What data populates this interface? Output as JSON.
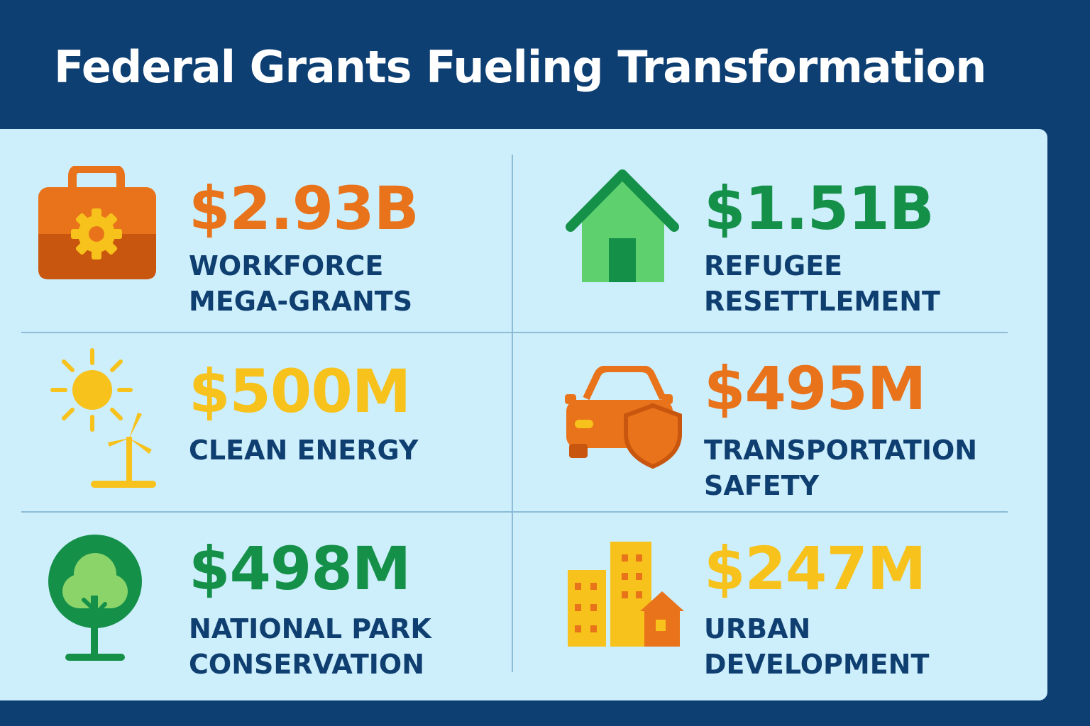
{
  "title": "Federal Grants Fueling Transformation",
  "colors": {
    "background": "#0e3f73",
    "panel": "#cdeefb",
    "label_text": "#0f3f70",
    "orange": "#e9731a",
    "green": "#159049",
    "yellow": "#f6c21b"
  },
  "grants": [
    {
      "amount": "$2.93B",
      "label_line1": "WORKFORCE",
      "label_line2": "MEGA-GRANTS",
      "icon": "briefcase-gear-icon",
      "color": "#e9731a"
    },
    {
      "amount": "$1.51B",
      "label_line1": "REFUGEE",
      "label_line2": "RESETTLEMENT",
      "icon": "house-icon",
      "color": "#159049"
    },
    {
      "amount": "$500M",
      "label_line1": "CLEAN ENERGY",
      "label_line2": "",
      "icon": "sun-wind-turbine-icon",
      "color": "#f6c21b"
    },
    {
      "amount": "$495M",
      "label_line1": "TRANSPORTATION",
      "label_line2": "SAFETY",
      "icon": "car-shield-icon",
      "color": "#e9731a"
    },
    {
      "amount": "$498M",
      "label_line1": "NATIONAL PARK",
      "label_line2": "CONSERVATION",
      "icon": "tree-icon",
      "color": "#159049"
    },
    {
      "amount": "$247M",
      "label_line1": "URBAN",
      "label_line2": "DEVELOPMENT",
      "icon": "city-buildings-icon",
      "color": "#f6c21b"
    }
  ]
}
